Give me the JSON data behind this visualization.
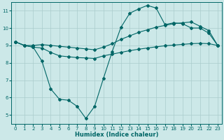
{
  "xlabel": "Humidex (Indice chaleur)",
  "bg_color": "#cce8e8",
  "grid_color": "#aacccc",
  "line_color": "#006666",
  "xlim_min": -0.5,
  "xlim_max": 23.5,
  "ylim_min": 4.5,
  "ylim_max": 11.5,
  "xticks": [
    0,
    1,
    2,
    3,
    4,
    5,
    6,
    7,
    8,
    9,
    10,
    11,
    12,
    13,
    14,
    15,
    16,
    17,
    18,
    19,
    20,
    21,
    22,
    23
  ],
  "yticks": [
    5,
    6,
    7,
    8,
    9,
    10,
    11
  ],
  "line1_x": [
    0,
    1,
    2,
    3,
    4,
    5,
    6,
    7,
    8,
    9,
    10,
    11,
    12,
    13,
    14,
    15,
    16,
    17,
    18,
    19,
    20,
    21,
    22,
    23
  ],
  "line1_y": [
    9.2,
    9.0,
    8.9,
    8.85,
    8.6,
    8.4,
    8.35,
    8.3,
    8.28,
    8.25,
    8.4,
    8.5,
    8.6,
    8.7,
    8.78,
    8.85,
    8.92,
    8.98,
    9.02,
    9.06,
    9.1,
    9.12,
    9.1,
    9.0
  ],
  "line2_x": [
    0,
    1,
    2,
    3,
    4,
    5,
    6,
    7,
    8,
    9,
    10,
    11,
    12,
    13,
    14,
    15,
    16,
    17,
    18,
    19,
    20,
    21,
    22,
    23
  ],
  "line2_y": [
    9.2,
    9.0,
    9.0,
    9.05,
    9.0,
    8.95,
    8.9,
    8.85,
    8.8,
    8.75,
    8.9,
    9.1,
    9.35,
    9.55,
    9.75,
    9.9,
    10.05,
    10.15,
    10.25,
    10.3,
    10.35,
    10.1,
    9.85,
    9.0
  ],
  "line3_x": [
    0,
    1,
    2,
    3,
    4,
    5,
    6,
    7,
    8,
    9,
    10,
    11,
    12,
    13,
    14,
    15,
    16,
    17,
    18,
    19,
    20,
    21,
    22,
    23
  ],
  "line3_y": [
    9.2,
    9.0,
    8.9,
    8.1,
    6.5,
    5.9,
    5.85,
    5.5,
    4.8,
    5.5,
    7.1,
    8.65,
    10.05,
    10.85,
    11.1,
    11.3,
    11.15,
    10.2,
    10.3,
    10.25,
    10.0,
    10.0,
    9.7,
    9.0
  ],
  "markersize": 2.0,
  "linewidth": 0.8
}
